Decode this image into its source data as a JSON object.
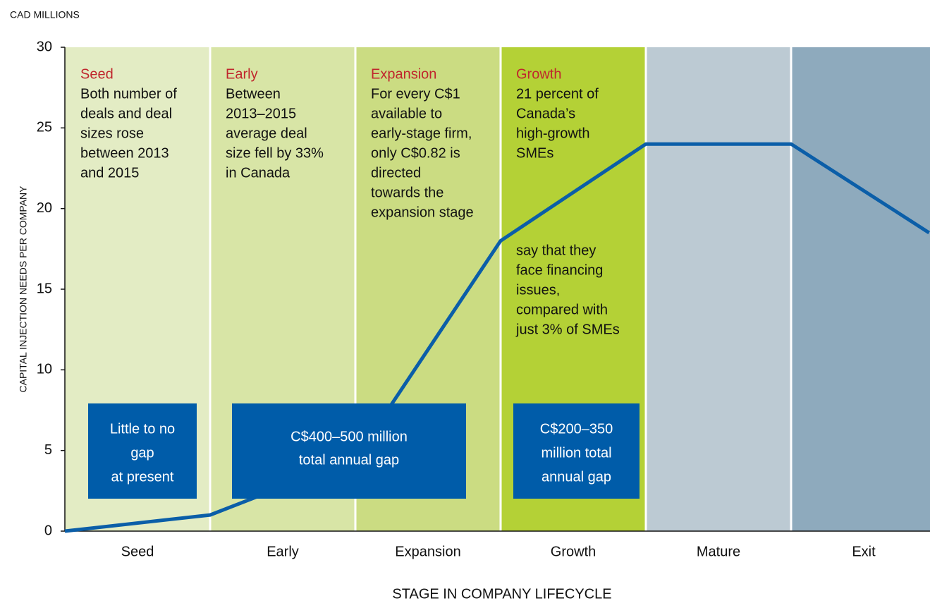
{
  "chart_data": {
    "type": "line",
    "unit_label": "CAD MILLIONS",
    "y_label": "CAPITAL INJECTION NEEDS PER COMPANY",
    "x_label": "STAGE IN COMPANY LIFECYCLE",
    "categories": [
      "Seed",
      "Early",
      "Expansion",
      "Growth",
      "Mature",
      "Exit"
    ],
    "band_colors": [
      "#e3ecc4",
      "#d8e5a6",
      "#cbdc82",
      "#b4d136",
      "#bccad3",
      "#8eaabd"
    ],
    "x": [
      0,
      1,
      2,
      3,
      4,
      5,
      5.95
    ],
    "series": [
      {
        "color": "#0b5ea8",
        "values": [
          0,
          1,
          4.5,
          18,
          24,
          24,
          18.5
        ]
      }
    ],
    "xlim": [
      0,
      6
    ],
    "ylim": [
      0,
      30
    ],
    "yticks": [
      0,
      5,
      10,
      15,
      20,
      25,
      30
    ],
    "notes": [
      {
        "title": "Seed",
        "lines": [
          "Both number of",
          "deals and deal",
          "sizes rose",
          "between 2013",
          "and 2015"
        ]
      },
      {
        "title": "Early",
        "lines": [
          "Between",
          "2013–2015",
          "average deal",
          "size fell by 33%",
          "in Canada"
        ]
      },
      {
        "title": "Expansion",
        "lines": [
          "For every C$1",
          "available to",
          "early-stage firm,",
          "only C$0.82 is",
          "directed",
          "towards the",
          "expansion stage"
        ]
      },
      {
        "title": "Growth",
        "lines": [
          "21 percent of",
          "Canada’s",
          "high-growth",
          "SMEs"
        ]
      }
    ],
    "note_continued": {
      "lines": [
        "say that they",
        "face financing",
        "issues,",
        "compared with",
        "just 3% of SMEs"
      ]
    },
    "boxes": [
      {
        "lines": [
          "Little to no",
          "gap",
          "at present"
        ]
      },
      {
        "lines": [
          "C$400–500 million",
          "total annual gap"
        ]
      },
      {
        "lines": [
          "C$200–350",
          "million total",
          "annual gap"
        ]
      }
    ]
  }
}
